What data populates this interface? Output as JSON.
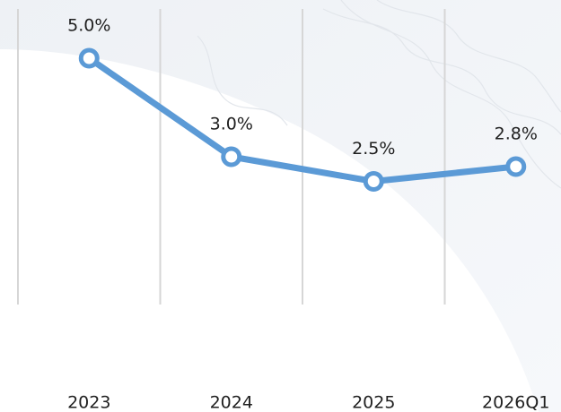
{
  "chart_data": {
    "type": "line",
    "categories": [
      "2023",
      "2024",
      "2025",
      "2026Q1"
    ],
    "values": [
      5.0,
      3.0,
      2.5,
      2.8
    ],
    "value_labels": [
      "5.0%",
      "3.0%",
      "2.5%",
      "2.8%"
    ],
    "color": "#5b9ad6",
    "ylim": [
      0,
      6
    ],
    "grid": true
  }
}
